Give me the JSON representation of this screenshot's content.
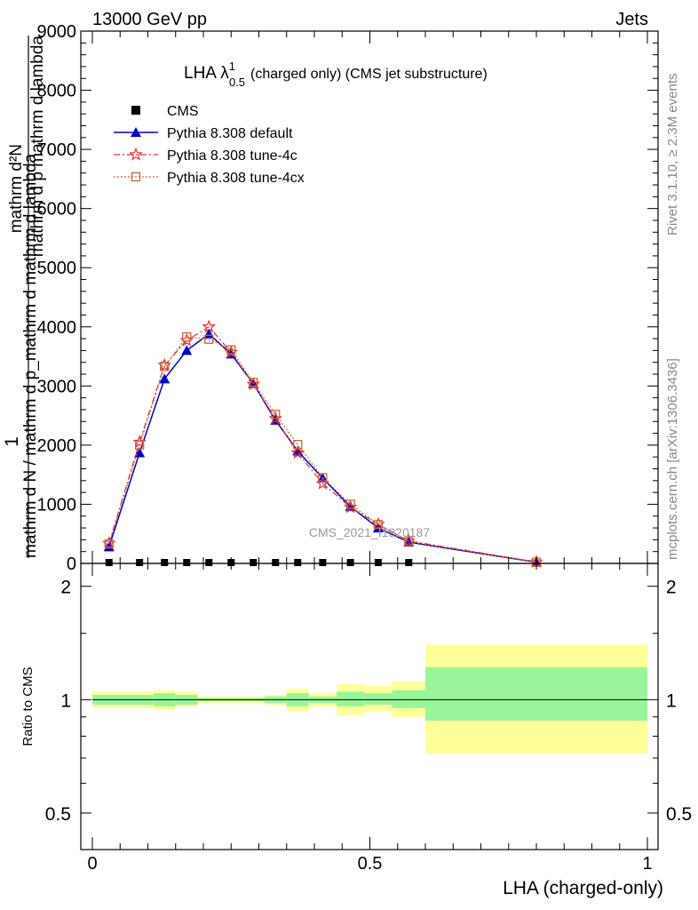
{
  "header": {
    "left": "13000 GeV pp",
    "right": "Jets"
  },
  "side_labels": {
    "rivet": "Rivet 3.1.10, ≥ 2.3M events",
    "mcplots": "mcplots.cern.ch [arXiv:1306.3436]"
  },
  "watermark": "CMS_2021_I1920187",
  "colors": {
    "cms": "#000000",
    "default": "#0000cc",
    "tune4c": "#dd3333",
    "tune4cx": "#cc6633",
    "band_inner": "#99f599",
    "band_outer": "#ffff99"
  },
  "chart_data": [
    {
      "type": "line",
      "title_main": "LHA λ",
      "title_sup": "1",
      "title_sub": "0.5",
      "title_rest": "(charged only) (CMS jet substructure)",
      "ylabel_one": "1",
      "ylabel_num": "mathrm d²N",
      "ylabel_den": "mathrm d p mathrm d lambda",
      "ylabel_left": "mathrm d N / mathrm d p_mathrm d mathrm d lambda",
      "xlim": [
        0,
        1
      ],
      "ylim": [
        0,
        9000
      ],
      "yticks": [
        0,
        1000,
        2000,
        3000,
        4000,
        5000,
        6000,
        7000,
        8000,
        9000
      ],
      "legend_position": "top-left",
      "series": [
        {
          "name": "CMS",
          "marker": "square",
          "x": [
            0.03,
            0.085,
            0.13,
            0.17,
            0.21,
            0.25,
            0.29,
            0.33,
            0.37,
            0.415,
            0.465,
            0.515,
            0.57
          ],
          "y": [
            0,
            0,
            0,
            0,
            0,
            0,
            0,
            0,
            0,
            0,
            0,
            0,
            0
          ]
        },
        {
          "name": "Pythia 8.308 default",
          "marker": "triangle",
          "x": [
            0.03,
            0.085,
            0.13,
            0.17,
            0.21,
            0.25,
            0.29,
            0.33,
            0.37,
            0.415,
            0.465,
            0.515,
            0.57,
            0.8
          ],
          "y": [
            280,
            1870,
            3120,
            3600,
            3880,
            3540,
            3040,
            2420,
            1900,
            1440,
            960,
            600,
            360,
            20
          ]
        },
        {
          "name": "Pythia 8.308 tune-4c",
          "marker": "star",
          "x": [
            0.03,
            0.085,
            0.13,
            0.17,
            0.21,
            0.25,
            0.29,
            0.33,
            0.37,
            0.415,
            0.465,
            0.515,
            0.57,
            0.8
          ],
          "y": [
            340,
            2050,
            3350,
            3770,
            4000,
            3570,
            3030,
            2450,
            1870,
            1350,
            950,
            660,
            380,
            25
          ]
        },
        {
          "name": "Pythia 8.308 tune-4cx",
          "marker": "open-square",
          "x": [
            0.03,
            0.085,
            0.13,
            0.17,
            0.21,
            0.25,
            0.29,
            0.33,
            0.37,
            0.415,
            0.465,
            0.515,
            0.57,
            0.8
          ],
          "y": [
            330,
            2000,
            3330,
            3830,
            3790,
            3610,
            3060,
            2520,
            2010,
            1450,
            1000,
            660,
            370,
            20
          ]
        }
      ]
    },
    {
      "type": "area",
      "ylabel": "Ratio to CMS",
      "xlabel": "LHA (charged-only)",
      "xlim": [
        0,
        1
      ],
      "ylim": [
        0.4,
        2.3
      ],
      "xticks": [
        0,
        0.5,
        1
      ],
      "xtick_labels": [
        "0",
        "0.5",
        "1"
      ],
      "yticks": [
        0.5,
        1,
        2
      ],
      "ytick_labels": [
        "0.5",
        "1",
        "2"
      ],
      "bins": [
        {
          "lo": 0.0,
          "hi": 0.06,
          "inner": [
            0.97,
            1.03
          ],
          "outer": [
            0.95,
            1.05
          ]
        },
        {
          "lo": 0.06,
          "hi": 0.11,
          "inner": [
            0.97,
            1.03
          ],
          "outer": [
            0.95,
            1.05
          ]
        },
        {
          "lo": 0.11,
          "hi": 0.15,
          "inner": [
            0.96,
            1.04
          ],
          "outer": [
            0.94,
            1.06
          ]
        },
        {
          "lo": 0.15,
          "hi": 0.19,
          "inner": [
            0.97,
            1.03
          ],
          "outer": [
            0.96,
            1.05
          ]
        },
        {
          "lo": 0.19,
          "hi": 0.23,
          "inner": [
            0.99,
            1.01
          ],
          "outer": [
            0.98,
            1.02
          ]
        },
        {
          "lo": 0.23,
          "hi": 0.27,
          "inner": [
            0.99,
            1.01
          ],
          "outer": [
            0.98,
            1.02
          ]
        },
        {
          "lo": 0.27,
          "hi": 0.31,
          "inner": [
            0.99,
            1.01
          ],
          "outer": [
            0.98,
            1.02
          ]
        },
        {
          "lo": 0.31,
          "hi": 0.35,
          "inner": [
            0.98,
            1.02
          ],
          "outer": [
            0.97,
            1.03
          ]
        },
        {
          "lo": 0.35,
          "hi": 0.39,
          "inner": [
            0.96,
            1.04
          ],
          "outer": [
            0.93,
            1.07
          ]
        },
        {
          "lo": 0.39,
          "hi": 0.44,
          "inner": [
            0.98,
            1.02
          ],
          "outer": [
            0.96,
            1.04
          ]
        },
        {
          "lo": 0.44,
          "hi": 0.49,
          "inner": [
            0.96,
            1.05
          ],
          "outer": [
            0.91,
            1.1
          ]
        },
        {
          "lo": 0.49,
          "hi": 0.54,
          "inner": [
            0.97,
            1.04
          ],
          "outer": [
            0.93,
            1.09
          ]
        },
        {
          "lo": 0.54,
          "hi": 0.6,
          "inner": [
            0.95,
            1.06
          ],
          "outer": [
            0.9,
            1.12
          ]
        },
        {
          "lo": 0.6,
          "hi": 1.0,
          "inner": [
            0.88,
            1.22
          ],
          "outer": [
            0.72,
            1.4
          ]
        }
      ]
    }
  ]
}
